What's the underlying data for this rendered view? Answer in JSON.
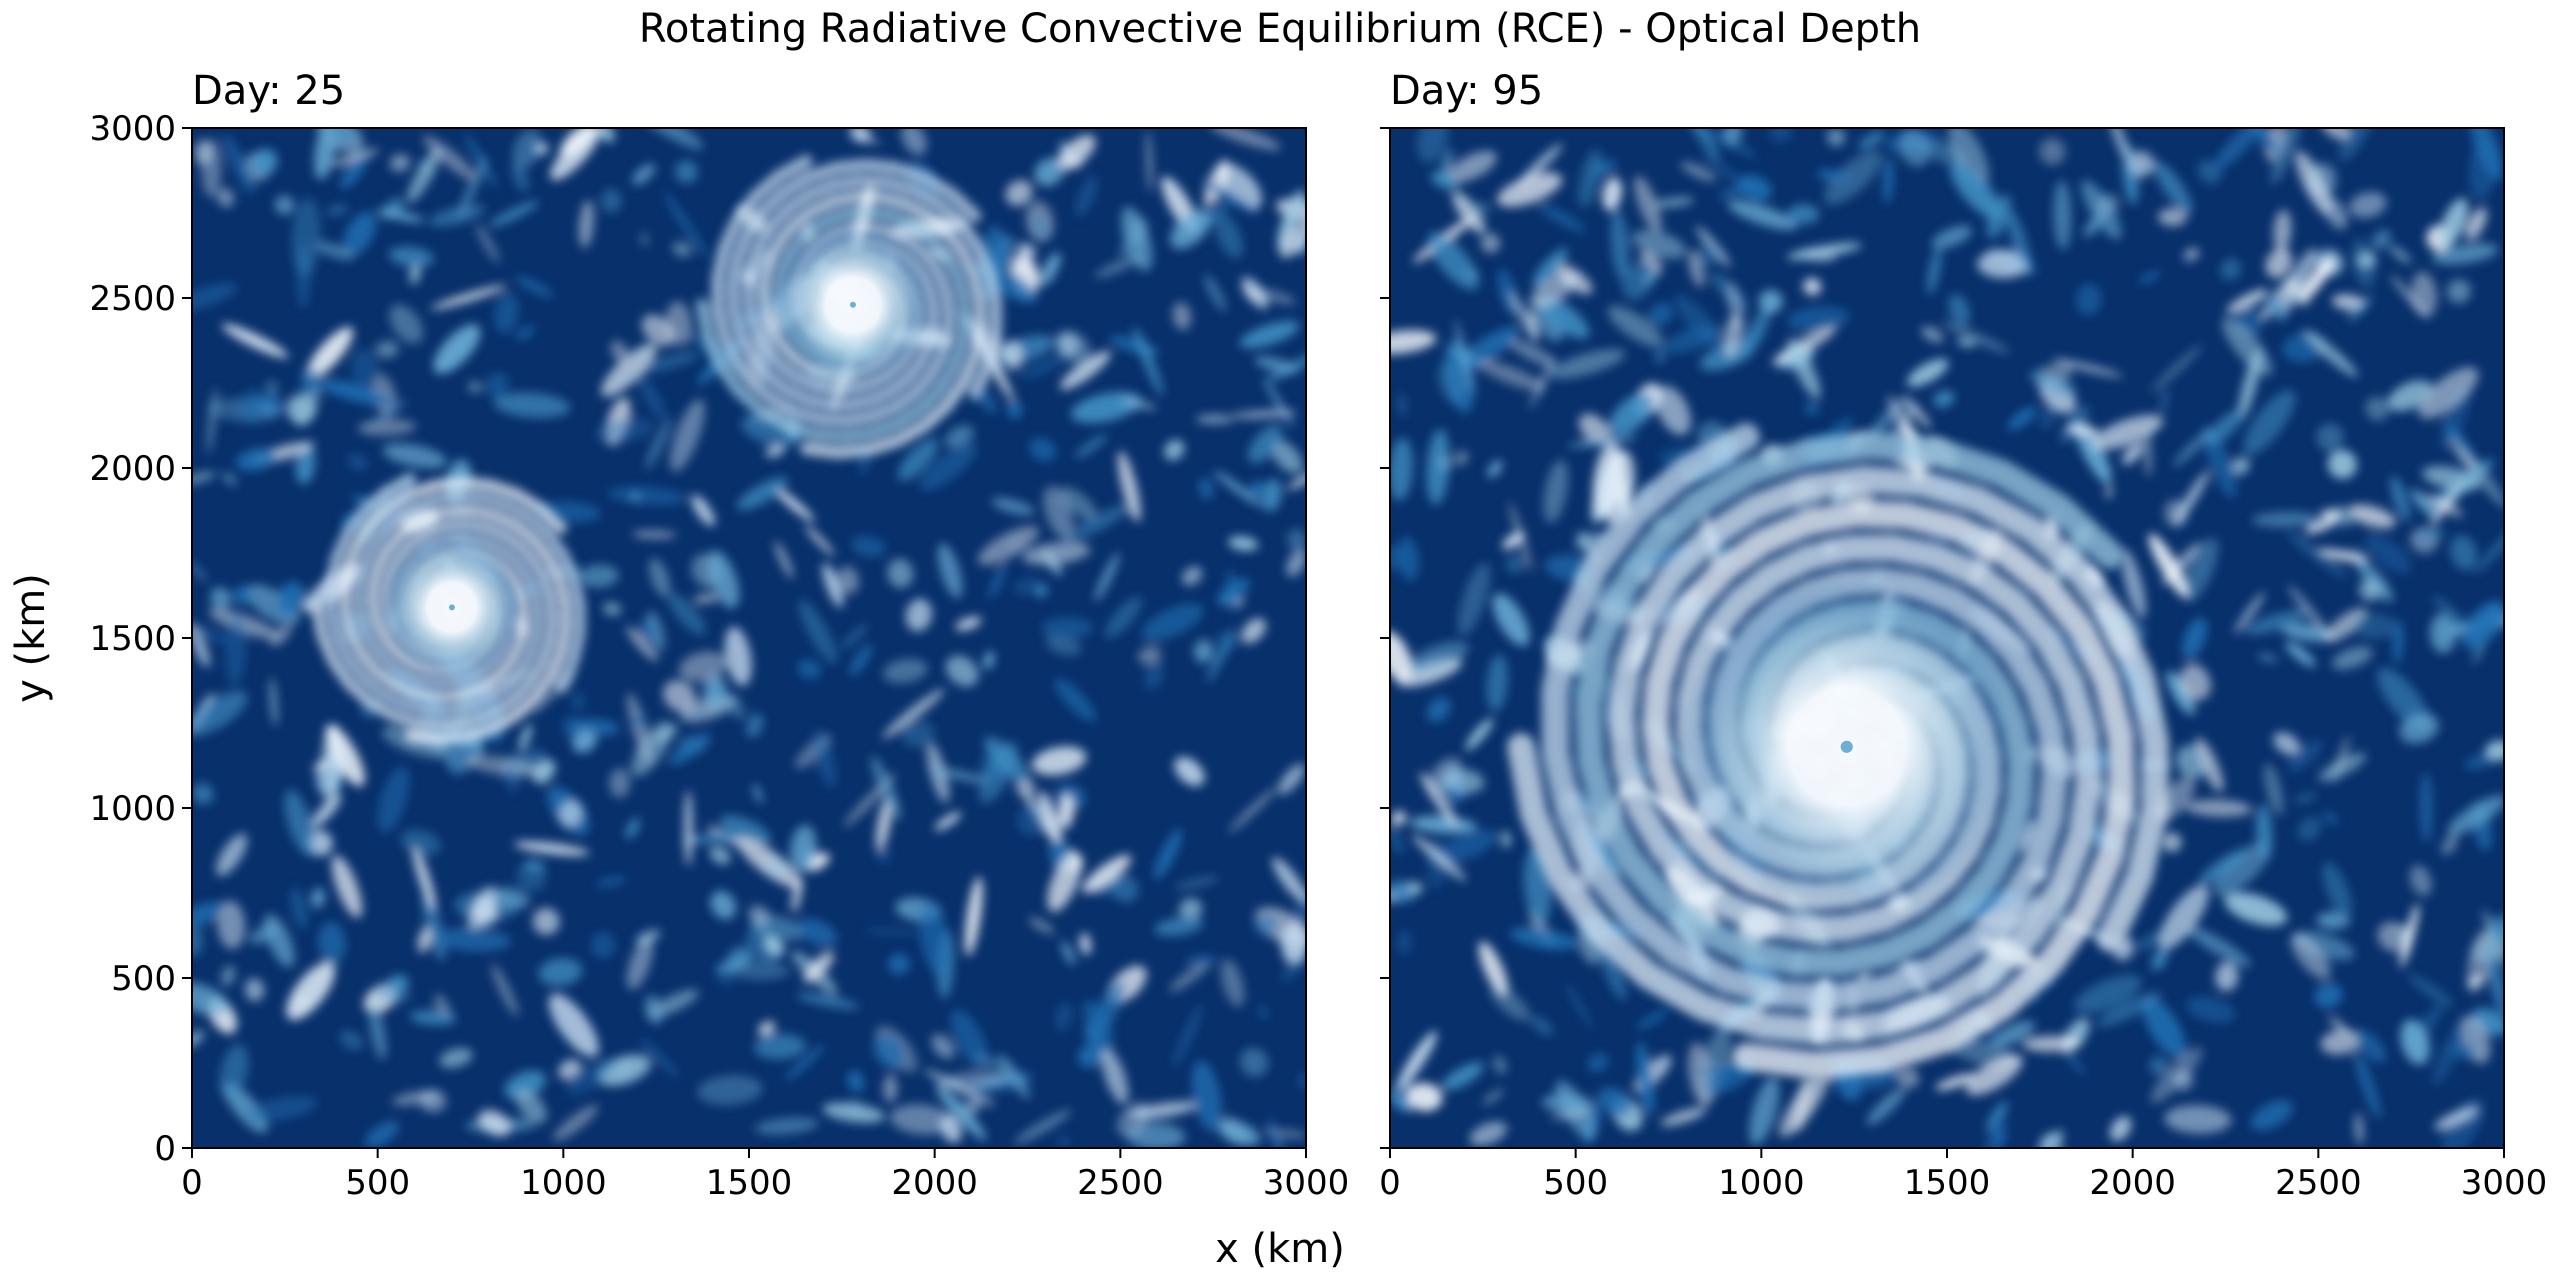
{
  "chart_data": {
    "type": "heatmap",
    "title": "Rotating Radiative Convective Equilibrium (RCE) - Optical Depth",
    "xlabel": "x (km)",
    "ylabel": "y (km)",
    "colormap": "Blues_r",
    "colors": {
      "low": "#08306b",
      "mid": "#2171b5",
      "high": "#f7fbff"
    },
    "grid": false,
    "sharey": true,
    "panels": [
      {
        "title": "Day: 25",
        "xlim": [
          0,
          3000
        ],
        "ylim": [
          0,
          3000
        ],
        "xticks": [
          0,
          500,
          1000,
          1500,
          2000,
          2500,
          3000
        ],
        "yticks": [
          0,
          500,
          1000,
          1500,
          2000,
          2500,
          3000
        ],
        "show_ytick_labels": true,
        "features": [
          {
            "kind": "cyclone",
            "x": 1780,
            "y": 2480,
            "radius": 380
          },
          {
            "kind": "cyclone",
            "x": 700,
            "y": 1590,
            "radius": 340
          }
        ]
      },
      {
        "title": "Day: 95",
        "xlim": [
          0,
          3000
        ],
        "ylim": [
          0,
          3000
        ],
        "xticks": [
          0,
          500,
          1000,
          1500,
          2000,
          2500,
          3000
        ],
        "yticks": [
          0,
          500,
          1000,
          1500,
          2000,
          2500,
          3000
        ],
        "show_ytick_labels": false,
        "features": [
          {
            "kind": "cyclone",
            "x": 1230,
            "y": 1180,
            "radius": 820
          }
        ]
      }
    ]
  }
}
